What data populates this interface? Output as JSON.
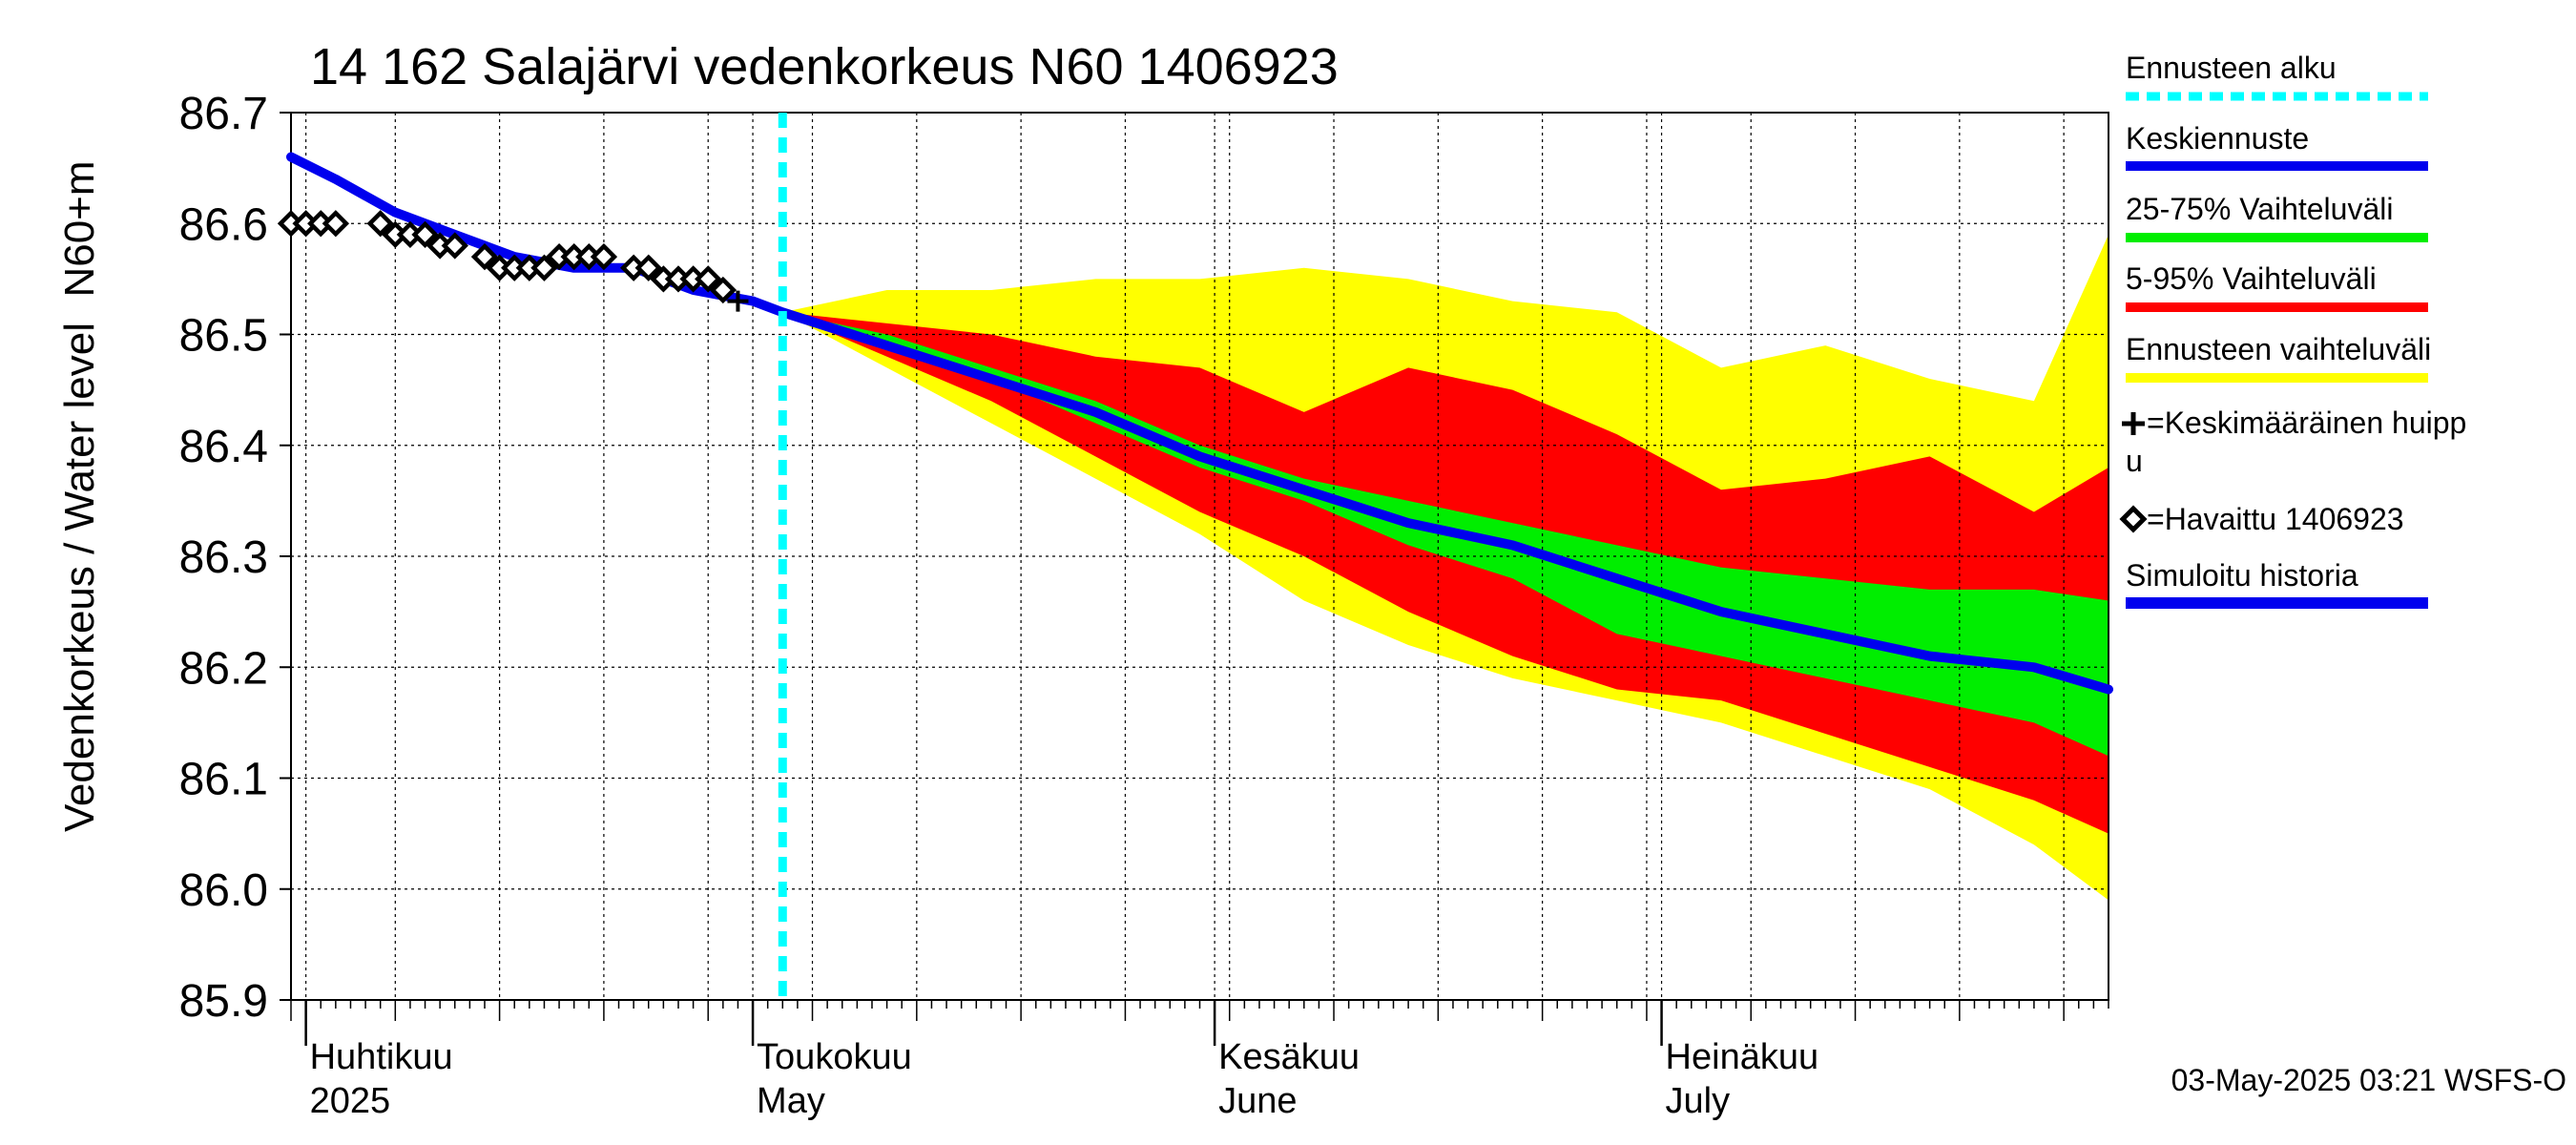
{
  "chart_data": {
    "type": "area",
    "title": "14 162 Salajärvi vedenkorkeus N60 1406923",
    "ylabel_outer": "Vedenkorkeus / Water level",
    "ylabel_inner": "N60+m",
    "ylim": [
      85.9,
      86.7
    ],
    "yticks": [
      "86.7",
      "86.6",
      "86.5",
      "86.4",
      "86.3",
      "86.2",
      "86.1",
      "86.0",
      "85.9"
    ],
    "ytick_values": [
      86.7,
      86.6,
      86.5,
      86.4,
      86.3,
      86.2,
      86.1,
      86.0,
      85.9
    ],
    "x_start": "2025-03-31",
    "x_end": "2025-07-31",
    "forecast_start": "2025-05-03",
    "grid": true,
    "months": [
      {
        "date": "2025-04-01",
        "fi": "Huhtikuu",
        "en": "2025"
      },
      {
        "date": "2025-05-01",
        "fi": "Toukokuu",
        "en": "May"
      },
      {
        "date": "2025-06-01",
        "fi": "Kesäkuu",
        "en": "June"
      },
      {
        "date": "2025-07-01",
        "fi": "Heinäkuu",
        "en": "July"
      }
    ],
    "band_dates": [
      "2025-05-03",
      "2025-05-10",
      "2025-05-17",
      "2025-05-24",
      "2025-05-31",
      "2025-06-07",
      "2025-06-14",
      "2025-06-21",
      "2025-06-28",
      "2025-07-05",
      "2025-07-12",
      "2025-07-19",
      "2025-07-26",
      "2025-07-31"
    ],
    "series": [
      {
        "name": "Ennusteen vaihteluväli",
        "color": "#ffff00",
        "upper": [
          86.52,
          86.54,
          86.54,
          86.55,
          86.55,
          86.56,
          86.55,
          86.53,
          86.52,
          86.47,
          86.49,
          86.46,
          86.44,
          86.59
        ],
        "lower": [
          86.52,
          86.47,
          86.42,
          86.37,
          86.32,
          86.26,
          86.22,
          86.19,
          86.17,
          86.15,
          86.12,
          86.09,
          86.04,
          85.99
        ]
      },
      {
        "name": "5-95% Vaihteluväli",
        "color": "#ff0000",
        "upper": [
          86.52,
          86.51,
          86.5,
          86.48,
          86.47,
          86.43,
          86.47,
          86.45,
          86.41,
          86.36,
          86.37,
          86.39,
          86.34,
          86.38
        ],
        "lower": [
          86.52,
          86.48,
          86.44,
          86.39,
          86.34,
          86.3,
          86.25,
          86.21,
          86.18,
          86.17,
          86.14,
          86.11,
          86.08,
          86.05
        ]
      },
      {
        "name": "25-75% Vaihteluväli",
        "color": "#00ee00",
        "upper": [
          86.52,
          86.5,
          86.47,
          86.44,
          86.4,
          86.37,
          86.35,
          86.33,
          86.31,
          86.29,
          86.28,
          86.27,
          86.27,
          86.26
        ],
        "lower": [
          86.52,
          86.49,
          86.46,
          86.42,
          86.38,
          86.35,
          86.31,
          86.28,
          86.23,
          86.21,
          86.19,
          86.17,
          86.15,
          86.12
        ]
      },
      {
        "name": "Keskiennuste",
        "color": "#0000ee",
        "dates": [
          "2025-03-31",
          "2025-04-03",
          "2025-04-07",
          "2025-04-11",
          "2025-04-15",
          "2025-04-19",
          "2025-04-23",
          "2025-04-27",
          "2025-05-01",
          "2025-05-03",
          "2025-05-10",
          "2025-05-17",
          "2025-05-24",
          "2025-05-31",
          "2025-06-07",
          "2025-06-14",
          "2025-06-21",
          "2025-06-28",
          "2025-07-05",
          "2025-07-12",
          "2025-07-19",
          "2025-07-26",
          "2025-07-31"
        ],
        "values": [
          86.66,
          86.64,
          86.61,
          86.59,
          86.57,
          86.56,
          86.56,
          86.54,
          86.53,
          86.52,
          86.49,
          86.46,
          86.43,
          86.39,
          86.36,
          86.33,
          86.31,
          86.28,
          86.25,
          86.23,
          86.21,
          86.2,
          86.18
        ]
      }
    ],
    "observed": {
      "name": "Havaittu 1406923",
      "dates": [
        "2025-03-31",
        "2025-04-01",
        "2025-04-02",
        "2025-04-03",
        "2025-04-06",
        "2025-04-07",
        "2025-04-08",
        "2025-04-09",
        "2025-04-10",
        "2025-04-11",
        "2025-04-13",
        "2025-04-14",
        "2025-04-15",
        "2025-04-16",
        "2025-04-17",
        "2025-04-18",
        "2025-04-19",
        "2025-04-20",
        "2025-04-21",
        "2025-04-23",
        "2025-04-24",
        "2025-04-25",
        "2025-04-26",
        "2025-04-27",
        "2025-04-28",
        "2025-04-29"
      ],
      "values": [
        86.6,
        86.6,
        86.6,
        86.6,
        86.6,
        86.59,
        86.59,
        86.59,
        86.58,
        86.58,
        86.57,
        86.56,
        86.56,
        86.56,
        86.56,
        86.57,
        86.57,
        86.57,
        86.57,
        86.56,
        86.56,
        86.55,
        86.55,
        86.55,
        86.55,
        86.54
      ]
    },
    "mean_peak": {
      "date": "2025-04-30",
      "value": 86.53
    }
  },
  "legend": {
    "items": [
      {
        "label": "Ennusteen alku",
        "color": "#00ffff",
        "style": "dashed"
      },
      {
        "label": "Keskiennuste",
        "color": "#0000ee",
        "style": "solid"
      },
      {
        "label": "25-75% Vaihteluväli",
        "color": "#00ee00",
        "style": "solid"
      },
      {
        "label": "5-95% Vaihteluväli",
        "color": "#ff0000",
        "style": "solid"
      },
      {
        "label": "Ennusteen vaihteluväli",
        "color": "#ffff00",
        "style": "solid"
      }
    ],
    "peak_label_line1": "=Keskimääräinen huipp",
    "peak_label_line2": "u",
    "observed_label": "=Havaittu 1406923",
    "simulated_label": "Simuloitu historia",
    "simulated_color": "#0000ee"
  },
  "footer": {
    "timestamp": "03-May-2025 03:21 WSFS-O"
  }
}
